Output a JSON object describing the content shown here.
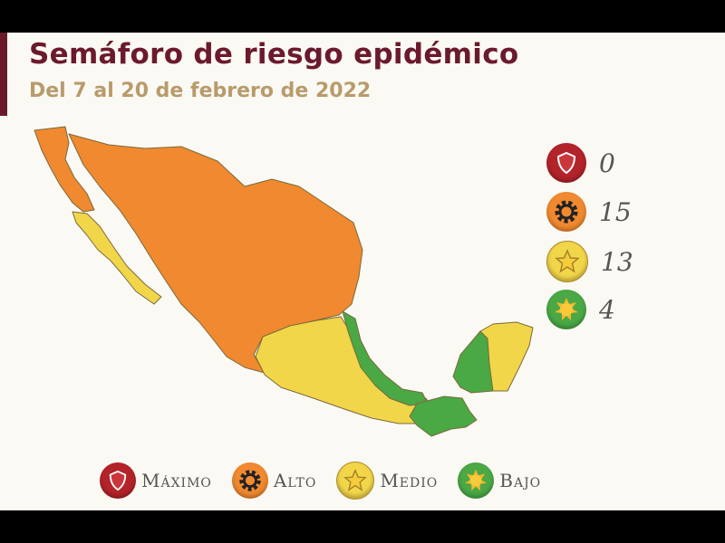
{
  "header": {
    "title": "Semáforo de riesgo epidémico",
    "subtitle": "Del 7 al 20 de febrero de 2022"
  },
  "colors": {
    "maximo": "#b3232a",
    "alto": "#f0892f",
    "medio": "#f2d64a",
    "bajo": "#4aa845",
    "title": "#6b1a2c",
    "subtitle": "#b89b6c"
  },
  "counts": [
    {
      "level": "maximo",
      "icon": "shield-icon",
      "value": "0"
    },
    {
      "level": "alto",
      "icon": "gear-icon",
      "value": "15"
    },
    {
      "level": "medio",
      "icon": "star-icon",
      "value": "13"
    },
    {
      "level": "bajo",
      "icon": "sun-icon",
      "value": "4"
    }
  ],
  "legend": [
    {
      "icon": "shield-icon",
      "label": "Máximo"
    },
    {
      "icon": "gear-icon",
      "label": "Alto"
    },
    {
      "icon": "star-icon",
      "label": "Medio"
    },
    {
      "icon": "sun-icon",
      "label": "Bajo"
    }
  ]
}
